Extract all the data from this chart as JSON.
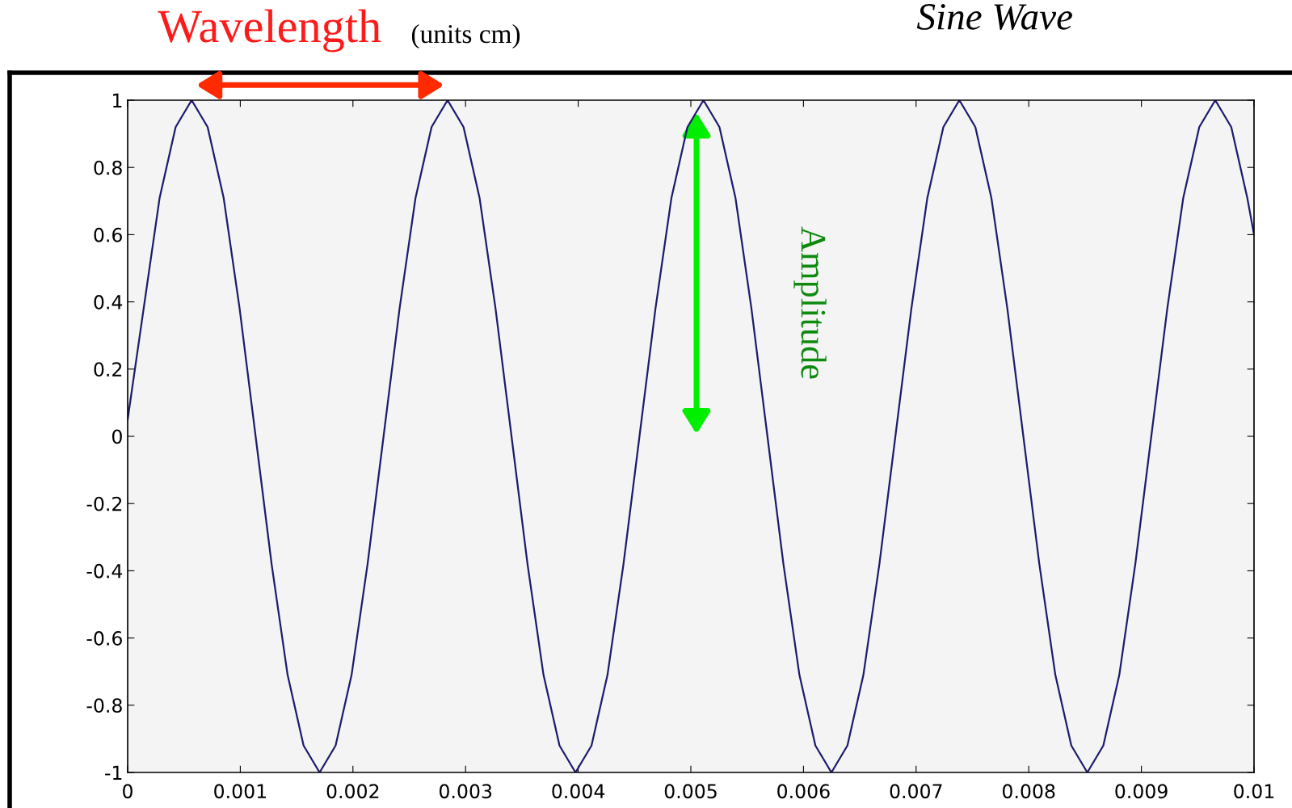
{
  "chart_data": {
    "type": "line",
    "title": "Sine Wave",
    "annotations": [
      "Wavelength",
      "(units cm)",
      "Amplitude"
    ],
    "x": [
      0,
      0.000142,
      0.000284,
      0.000426,
      0.000568,
      0.00071,
      0.000852,
      0.000994,
      0.001136,
      0.001278,
      0.00142,
      0.001562,
      0.001704,
      0.001846,
      0.001988,
      0.00213,
      0.002272,
      0.002414,
      0.002556,
      0.002698,
      0.00284,
      0.002982,
      0.003124,
      0.003266,
      0.003408,
      0.00355,
      0.003692,
      0.003834,
      0.003976,
      0.004118,
      0.00426,
      0.004402,
      0.004544,
      0.004686,
      0.004828,
      0.00497,
      0.005112,
      0.005254,
      0.005396,
      0.005538,
      0.00568,
      0.005822,
      0.005964,
      0.006106,
      0.006248,
      0.00639,
      0.006532,
      0.006674,
      0.006816,
      0.006958,
      0.0071,
      0.007242,
      0.007384,
      0.007526,
      0.007668,
      0.00781,
      0.007952,
      0.008094,
      0.008236,
      0.008378,
      0.00852,
      0.008662,
      0.008804,
      0.008946,
      0.009088,
      0.00923,
      0.009372,
      0.009514,
      0.009656,
      0.009798,
      0.00994,
      0.01
    ],
    "series": [
      {
        "color": "#1c1c6e",
        "values": [
          0.05,
          0.38,
          0.71,
          0.92,
          1,
          0.92,
          0.71,
          0.38,
          0,
          -0.38,
          -0.71,
          -0.92,
          -1,
          -0.92,
          -0.71,
          -0.38,
          0,
          0.38,
          0.71,
          0.92,
          1,
          0.92,
          0.71,
          0.38,
          0,
          -0.38,
          -0.71,
          -0.92,
          -1,
          -0.92,
          -0.71,
          -0.38,
          0,
          0.38,
          0.71,
          0.92,
          1,
          0.92,
          0.71,
          0.38,
          0,
          -0.38,
          -0.71,
          -0.92,
          -1,
          -0.92,
          -0.71,
          -0.38,
          0,
          0.38,
          0.71,
          0.92,
          1,
          0.92,
          0.71,
          0.38,
          0,
          -0.38,
          -0.71,
          -0.92,
          -1,
          -0.92,
          -0.71,
          -0.38,
          0,
          0.38,
          0.71,
          0.92,
          1,
          0.92,
          0.71,
          0.6
        ]
      }
    ],
    "xlim": [
      0,
      0.01
    ],
    "xticks": [
      0,
      0.001,
      0.002,
      0.003,
      0.004,
      0.005,
      0.006,
      0.007,
      0.008,
      0.009,
      0.01
    ],
    "ylim": [
      -1,
      1
    ],
    "yticks": [
      -1,
      -0.8,
      -0.6,
      -0.4,
      -0.2,
      0,
      0.2,
      0.4,
      0.6,
      0.8,
      1
    ],
    "grid": false,
    "legend": false,
    "marker": "none",
    "line_style": "solid"
  }
}
